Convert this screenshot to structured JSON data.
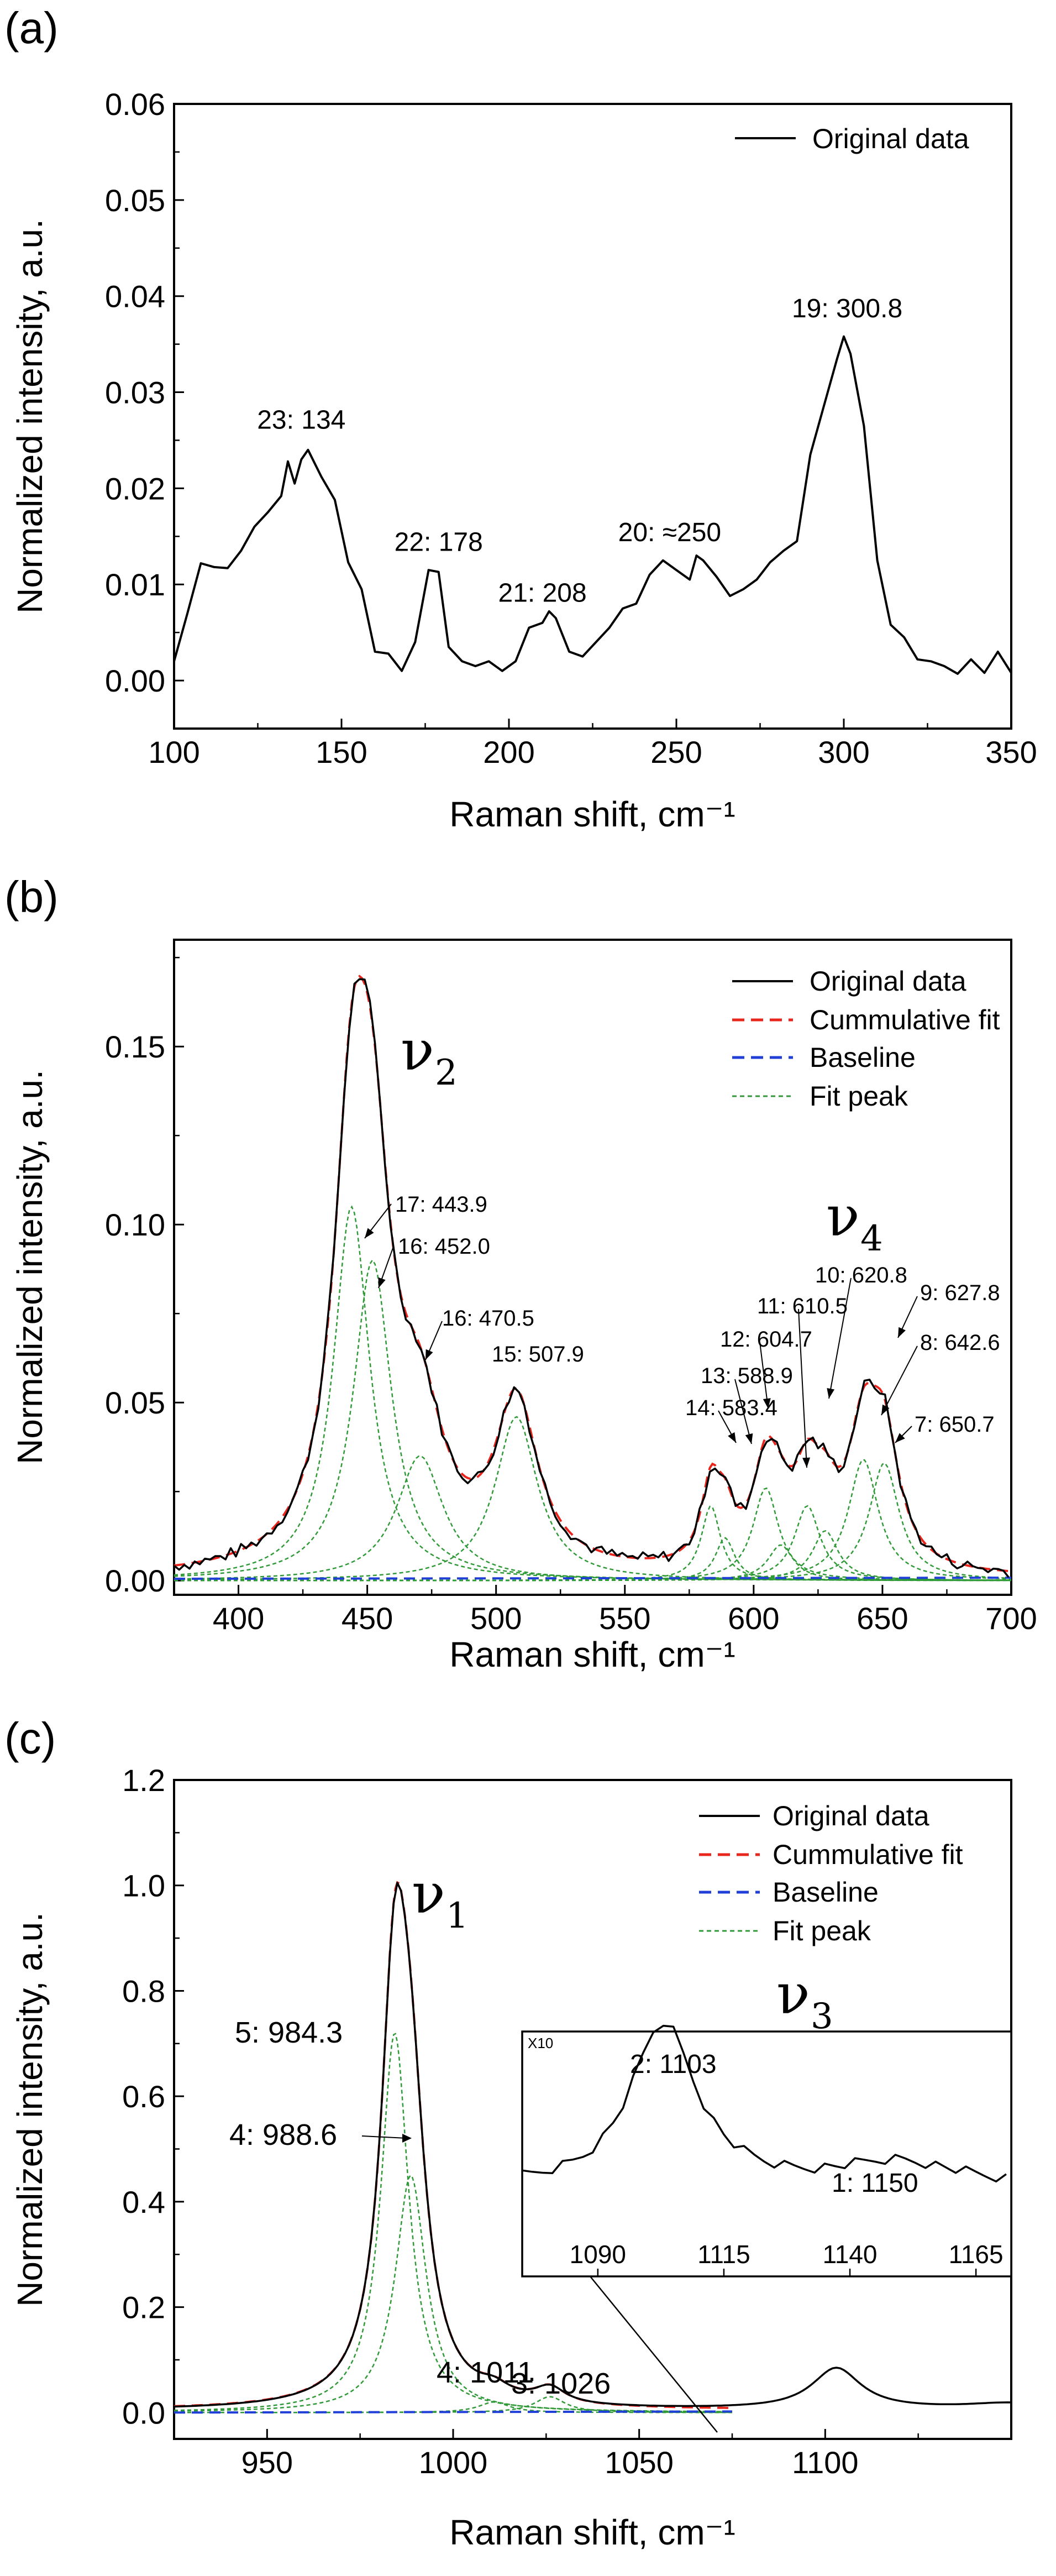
{
  "chart_data": [
    {
      "panel": "(a)",
      "type": "line",
      "xlabel": "Raman shift, cm⁻¹",
      "ylabel": "Normalized intensity, a.u.",
      "xlim": [
        100,
        350
      ],
      "ylim": [
        -0.005,
        0.06
      ],
      "xticks": [
        100,
        150,
        200,
        250,
        300,
        350
      ],
      "xtick_labels": [
        "100",
        "150",
        "200",
        "250",
        "300",
        "350"
      ],
      "yticks": [
        0.0,
        0.01,
        0.02,
        0.03,
        0.04,
        0.05,
        0.06
      ],
      "ytick_labels": [
        "0.00",
        "0.01",
        "0.02",
        "0.03",
        "0.04",
        "0.05",
        "0.06"
      ],
      "legend": [
        "Original data"
      ],
      "legend_position": "top-right",
      "series": [
        {
          "name": "Original data",
          "style": "solid-black",
          "x": [
            100,
            104,
            108,
            112,
            116,
            120,
            124,
            128,
            132,
            134,
            136,
            138,
            140,
            144,
            148,
            152,
            156,
            160,
            164,
            168,
            172,
            176,
            179,
            182,
            186,
            190,
            194,
            198,
            202,
            206,
            210,
            212,
            214,
            218,
            222,
            226,
            230,
            234,
            238,
            242,
            246,
            250,
            254,
            256,
            258,
            262,
            266,
            270,
            274,
            278,
            282,
            286,
            290,
            294,
            298,
            300,
            302,
            306,
            310,
            314,
            318,
            322,
            326,
            330,
            334,
            338,
            342,
            346,
            350
          ],
          "y": [
            0.002,
            0.007,
            0.0122,
            0.0118,
            0.0117,
            0.0135,
            0.016,
            0.0175,
            0.0192,
            0.0228,
            0.0205,
            0.023,
            0.024,
            0.0212,
            0.0188,
            0.0123,
            0.0095,
            0.003,
            0.0028,
            0.001,
            0.004,
            0.0115,
            0.0113,
            0.0035,
            0.002,
            0.0015,
            0.002,
            0.001,
            0.002,
            0.0055,
            0.006,
            0.0072,
            0.0065,
            0.003,
            0.0025,
            0.004,
            0.0055,
            0.0075,
            0.008,
            0.011,
            0.0125,
            0.0115,
            0.0105,
            0.013,
            0.0125,
            0.0108,
            0.0088,
            0.0095,
            0.0105,
            0.0123,
            0.0135,
            0.0145,
            0.0235,
            0.0285,
            0.0335,
            0.0358,
            0.034,
            0.0265,
            0.0125,
            0.0058,
            0.0045,
            0.0022,
            0.002,
            0.0015,
            0.0007,
            0.0022,
            0.0008,
            0.003,
            0.0008
          ]
        }
      ],
      "annotations": [
        {
          "text": "23: 134",
          "x": 138,
          "y": 0.0262
        },
        {
          "text": "22: 178",
          "x": 179,
          "y": 0.0135
        },
        {
          "text": "21: 208",
          "x": 210,
          "y": 0.0082
        },
        {
          "text": "20: ≈250",
          "x": 248,
          "y": 0.0145
        },
        {
          "text": "19: 300.8",
          "x": 301,
          "y": 0.0378
        }
      ]
    },
    {
      "panel": "(b)",
      "type": "line",
      "xlabel": "Raman shift, cm⁻¹",
      "ylabel": "Normalized intensity, a.u.",
      "xlim": [
        375,
        700
      ],
      "ylim": [
        -0.004,
        0.18
      ],
      "xticks": [
        400,
        450,
        500,
        550,
        600,
        650,
        700
      ],
      "xtick_labels": [
        "400",
        "450",
        "500",
        "550",
        "600",
        "650",
        "700"
      ],
      "yticks": [
        0.0,
        0.05,
        0.1,
        0.15
      ],
      "ytick_labels": [
        "0.00",
        "0.05",
        "0.10",
        "0.15"
      ],
      "legend": [
        "Original data",
        "Cummulative fit",
        "Baseline",
        "Fit peak"
      ],
      "legend_position": "top-right",
      "band_labels": [
        {
          "main": "ν",
          "sub": "2"
        },
        {
          "main": "ν",
          "sub": "4"
        }
      ],
      "fit_peaks": [
        {
          "center": 443.9,
          "height": 0.105,
          "width": 17
        },
        {
          "center": 452.0,
          "height": 0.09,
          "width": 18
        },
        {
          "center": 470.5,
          "height": 0.035,
          "width": 22
        },
        {
          "center": 507.9,
          "height": 0.046,
          "width": 20
        },
        {
          "center": 583.4,
          "height": 0.021,
          "width": 9
        },
        {
          "center": 588.9,
          "height": 0.012,
          "width": 9
        },
        {
          "center": 604.7,
          "height": 0.026,
          "width": 12
        },
        {
          "center": 610.5,
          "height": 0.01,
          "width": 12
        },
        {
          "center": 620.8,
          "height": 0.021,
          "width": 12
        },
        {
          "center": 627.8,
          "height": 0.014,
          "width": 12
        },
        {
          "center": 642.6,
          "height": 0.034,
          "width": 14
        },
        {
          "center": 650.7,
          "height": 0.033,
          "width": 14
        }
      ],
      "annotations": [
        {
          "text": "17: 443.9"
        },
        {
          "text": "16: 452.0"
        },
        {
          "text": "16: 470.5"
        },
        {
          "text": "15: 507.9"
        },
        {
          "text": "14: 583.4"
        },
        {
          "text": "13: 588.9"
        },
        {
          "text": "12: 604.7"
        },
        {
          "text": "11: 610.5"
        },
        {
          "text": "10: 620.8"
        },
        {
          "text": "9: 627.8"
        },
        {
          "text": "8: 642.6"
        },
        {
          "text": "7: 650.7"
        }
      ]
    },
    {
      "panel": "(c)",
      "type": "line",
      "xlabel": "Raman shift, cm⁻¹",
      "ylabel": "Normalized intensity, a.u.",
      "xlim": [
        925,
        1150
      ],
      "ylim": [
        -0.05,
        1.2
      ],
      "xticks": [
        950,
        1000,
        1050,
        1100
      ],
      "xtick_labels": [
        "950",
        "1000",
        "1050",
        "1100"
      ],
      "yticks": [
        0.0,
        0.2,
        0.4,
        0.6,
        0.8,
        1.0,
        1.2
      ],
      "ytick_labels": [
        "0.0",
        "0.2",
        "0.4",
        "0.6",
        "0.8",
        "1.0",
        "1.2"
      ],
      "legend": [
        "Original data",
        "Cummulative fit",
        "Baseline",
        "Fit peak"
      ],
      "legend_position": "top-right",
      "band_labels": [
        {
          "main": "ν",
          "sub": "1"
        },
        {
          "main": "ν",
          "sub": "3"
        }
      ],
      "fit_peaks": [
        {
          "center": 984.3,
          "height": 0.72,
          "width": 9
        },
        {
          "center": 988.6,
          "height": 0.45,
          "width": 10
        },
        {
          "center": 1011,
          "height": 0.02,
          "width": 10
        },
        {
          "center": 1026,
          "height": 0.03,
          "width": 10
        }
      ],
      "annotations": [
        {
          "text": "5: 984.3"
        },
        {
          "text": "4: 988.6"
        },
        {
          "text": "4: 1011"
        },
        {
          "text": "3: 1026"
        }
      ],
      "inset": {
        "scale_label": "X10",
        "xlim": [
          1075,
          1172
        ],
        "xticks": [
          1090,
          1115,
          1140,
          1165
        ],
        "xtick_labels": [
          "1090",
          "1115",
          "1140",
          "1165"
        ],
        "annotations": [
          {
            "text": "2: 1103"
          },
          {
            "text": "1: 1150"
          }
        ]
      }
    }
  ]
}
